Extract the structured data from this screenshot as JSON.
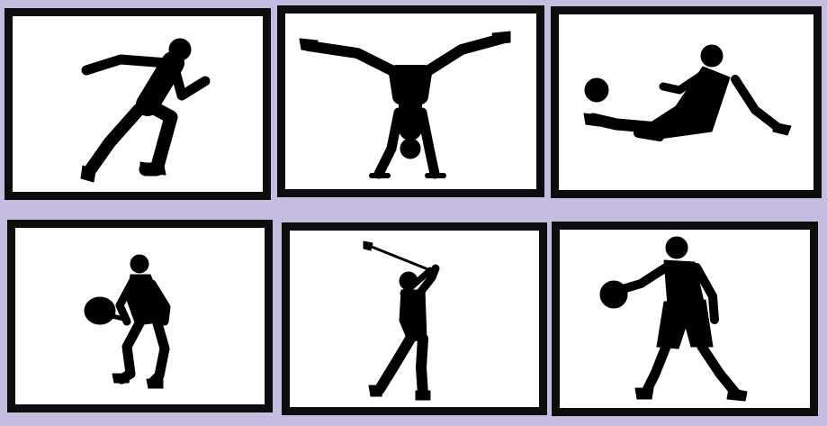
{
  "tiles": [
    {
      "icon": "sprinter-silhouette-icon"
    },
    {
      "icon": "handstand-silhouette-icon"
    },
    {
      "icon": "volleyball-dive-silhouette-icon"
    },
    {
      "icon": "padel-player-silhouette-icon"
    },
    {
      "icon": "golfer-silhouette-icon"
    },
    {
      "icon": "basketball-dribble-silhouette-icon"
    }
  ],
  "colors": {
    "background": "#c4bde0",
    "frame": "#0d0d0d",
    "tile": "#ffffff",
    "silhouette": "#000000"
  }
}
